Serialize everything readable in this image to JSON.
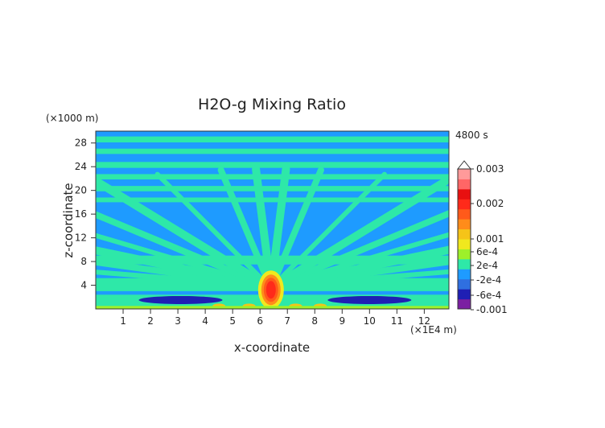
{
  "chart_data": {
    "type": "heatmap",
    "title": "H2O-g Mixing Ratio",
    "xlabel": "x-coordinate",
    "ylabel": "z-coordinate",
    "x_unit": "(×1E4 m)",
    "y_unit": "(×1000 m)",
    "time_label": "4800 s",
    "xlim": [
      0,
      12.9
    ],
    "ylim": [
      0,
      30
    ],
    "x_ticks": [
      1,
      2,
      3,
      4,
      5,
      6,
      7,
      8,
      9,
      10,
      11,
      12
    ],
    "y_ticks": [
      4,
      8,
      12,
      16,
      20,
      24,
      28
    ],
    "colorbar": {
      "levels": [
        -0.001,
        -0.0006,
        -0.0002,
        0.0002,
        0.0006,
        0.001,
        0.002,
        0.003
      ],
      "tick_labels": [
        "0.003",
        "0.002",
        "0.001",
        "6e-4",
        "2e-4",
        "-2e-4",
        "-6e-4",
        "-0.001"
      ],
      "colors": [
        "#7b1fa2",
        "#1f1fb4",
        "#2f6fe0",
        "#1e9bff",
        "#2ee8a8",
        "#9ef02a",
        "#f0e81e",
        "#f5c418",
        "#ff8c1a",
        "#ff5a1a",
        "#ff2a1a",
        "#e81010",
        "#ff6666",
        "#ff9a9a"
      ]
    },
    "dominant_value_range": [
      -0.0002,
      0.0002
    ],
    "features": [
      {
        "type": "maximum",
        "x": 6.4,
        "z": 3.5,
        "value": 0.002
      },
      {
        "type": "minimum",
        "x": 3.1,
        "z": 1.5,
        "value": -0.0006
      },
      {
        "type": "minimum",
        "x": 10.0,
        "z": 1.5,
        "value": -0.0006
      }
    ]
  }
}
